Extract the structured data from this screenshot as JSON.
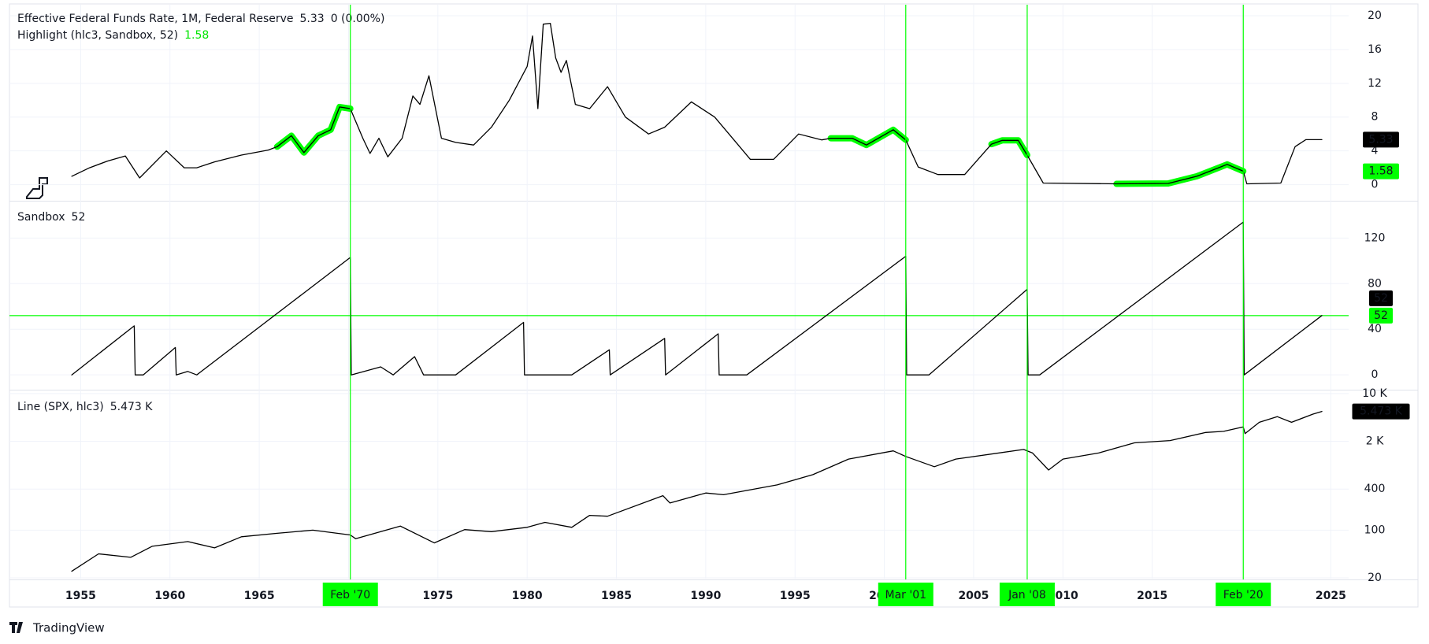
{
  "time_axis": {
    "xlim": [
      1951.1,
      2026
    ],
    "xticks": [
      1955,
      1960,
      1965,
      1970,
      1975,
      1980,
      1985,
      1990,
      1995,
      2000,
      2005,
      2010,
      2015,
      2020,
      2025
    ],
    "markers": [
      {
        "value": 1970.1,
        "label": "Feb '70"
      },
      {
        "value": 2001.2,
        "label": "Mar '01"
      },
      {
        "value": 2008.0,
        "label": "Jan '08"
      },
      {
        "value": 2020.1,
        "label": "Feb '20"
      }
    ],
    "marker_color": "#00ff00"
  },
  "brand": "TradingView",
  "chart_data": [
    {
      "type": "line",
      "legend_change": "0 (0.00%)",
      "ylim": [
        -1.9,
        21.3
      ],
      "yticks": [
        0,
        4,
        8,
        12,
        16,
        20
      ],
      "grid": true,
      "x": [
        1954.5,
        1955.5,
        1956.5,
        1957.5,
        1958.3,
        1959.8,
        1960.8,
        1961.5,
        1962.5,
        1964,
        1965.5,
        1966,
        1966.8,
        1967.5,
        1968.3,
        1969,
        1969.5,
        1970.1,
        1970.8,
        1971.2,
        1971.7,
        1972.2,
        1973,
        1973.6,
        1974,
        1974.5,
        1975.2,
        1976,
        1977,
        1978,
        1979,
        1980,
        1980.3,
        1980.6,
        1980.9,
        1981.3,
        1981.6,
        1981.9,
        1982.2,
        1982.7,
        1983.5,
        1984.5,
        1985.5,
        1986.8,
        1987.7,
        1989.2,
        1990.5,
        1991.5,
        1992.5,
        1993.8,
        1995.2,
        1996.5,
        1997,
        1998.2,
        1999,
        2000.5,
        2001.2,
        2001.9,
        2003,
        2004.5,
        2006,
        2006.6,
        2007.5,
        2008,
        2008.9,
        2013,
        2015.9,
        2017.5,
        2019.2,
        2020.1,
        2020.3,
        2022.2,
        2023,
        2023.6,
        2024.5
      ],
      "series": [
        {
          "name": "Effective Federal Funds Rate, 1M, Federal Reserve",
          "legend_value": "5.33",
          "color": "#000000",
          "line_width": 1.3,
          "values": [
            1.0,
            2.0,
            2.8,
            3.4,
            0.8,
            4.0,
            2.0,
            2.0,
            2.7,
            3.5,
            4.1,
            4.5,
            5.8,
            3.8,
            5.8,
            6.5,
            9.2,
            9.0,
            5.5,
            3.7,
            5.5,
            3.3,
            5.5,
            10.5,
            9.5,
            12.9,
            5.5,
            5.0,
            4.7,
            6.8,
            10.0,
            14.0,
            17.6,
            9.0,
            19.0,
            19.1,
            15.0,
            13.3,
            14.7,
            9.5,
            9.0,
            11.6,
            8.0,
            6.0,
            6.8,
            9.8,
            8.0,
            5.5,
            3.0,
            3.0,
            6.0,
            5.3,
            5.5,
            5.5,
            4.7,
            6.5,
            5.3,
            2.1,
            1.2,
            1.2,
            4.8,
            5.25,
            5.25,
            3.5,
            0.2,
            0.1,
            0.15,
            1.0,
            2.4,
            1.6,
            0.1,
            0.2,
            4.5,
            5.33,
            5.33
          ]
        },
        {
          "name": "Highlight (hlc3, Sandbox, 52)",
          "legend_value": "1.58",
          "color": "#00ff00",
          "line_width": 8,
          "values": [
            null,
            null,
            null,
            null,
            null,
            null,
            null,
            null,
            null,
            null,
            null,
            4.5,
            5.8,
            3.8,
            5.8,
            6.5,
            9.2,
            9.0,
            null,
            null,
            null,
            null,
            null,
            null,
            null,
            null,
            null,
            null,
            null,
            null,
            null,
            null,
            null,
            null,
            null,
            null,
            null,
            null,
            null,
            null,
            null,
            null,
            null,
            null,
            null,
            null,
            null,
            null,
            null,
            null,
            null,
            null,
            5.5,
            5.5,
            4.7,
            6.5,
            5.3,
            null,
            null,
            null,
            4.8,
            5.25,
            5.25,
            3.5,
            null,
            0.1,
            0.15,
            1.0,
            2.4,
            1.6,
            null,
            null,
            null,
            null,
            null
          ]
        }
      ],
      "price_labels": [
        {
          "value": 5.33,
          "label": "5.33",
          "color": "#000000"
        },
        {
          "value": 1.58,
          "label": "1.58",
          "color": "#00ff00"
        }
      ]
    },
    {
      "type": "line",
      "ylim": [
        -13,
        152
      ],
      "yticks": [
        0,
        40,
        80,
        120
      ],
      "grid": true,
      "x": [
        1954.5,
        1958.0,
        1958.05,
        1958.5,
        1960.3,
        1960.35,
        1961.0,
        1961.5,
        1970.1,
        1970.15,
        1971.8,
        1972.5,
        1973.7,
        1974.2,
        1976,
        1979.8,
        1979.85,
        1982.5,
        1984.6,
        1984.65,
        1987.7,
        1987.75,
        1990.7,
        1990.75,
        1992.3,
        2001.2,
        2001.25,
        2002.5,
        2008.0,
        2008.05,
        2008.7,
        2020.1,
        2020.15,
        2024.5
      ],
      "series": [
        {
          "name": "Sandbox",
          "legend_value": "52",
          "color": "#000000",
          "line_width": 1.3,
          "values": [
            0,
            43,
            0,
            0,
            24,
            0,
            3,
            0,
            103,
            0,
            7,
            0,
            16,
            0,
            0,
            46,
            0,
            0,
            22,
            0,
            32,
            0,
            36,
            0,
            0,
            104,
            0,
            0,
            75,
            0,
            0,
            134,
            0,
            52
          ]
        }
      ],
      "hline": {
        "value": 52,
        "color": "#00ff00"
      },
      "price_labels": [
        {
          "value": 52,
          "label": "52",
          "color": "#000000"
        },
        {
          "value": 52,
          "label": "52",
          "color": "#00ff00"
        }
      ]
    },
    {
      "type": "line",
      "log_scale": true,
      "ylim": [
        19.5,
        11100
      ],
      "yticks": [
        20,
        100,
        400,
        {
          "value": 2000,
          "label": "2 K"
        },
        {
          "value": 10000,
          "label": "10 K"
        }
      ],
      "grid": true,
      "x": [
        1954.5,
        1956,
        1957.8,
        1959,
        1961,
        1962.5,
        1964,
        1966,
        1968,
        1970.1,
        1970.4,
        1972.9,
        1974.8,
        1976.5,
        1978,
        1980,
        1981,
        1982.5,
        1983.5,
        1984.5,
        1987.6,
        1988,
        1990,
        1991,
        1994,
        1996,
        1998,
        2000.5,
        2001.2,
        2002.8,
        2004,
        2007.8,
        2008.3,
        2009.2,
        2010,
        2012,
        2014,
        2016,
        2018,
        2019,
        2020.1,
        2020.2,
        2021,
        2022,
        2022.8,
        2024,
        2024.5
      ],
      "series": [
        {
          "name": "Line (SPX, hlc3)",
          "legend_value": "5.473 K",
          "color": "#000000",
          "line_width": 1.3,
          "values": [
            25,
            45,
            40,
            58,
            68,
            55,
            80,
            90,
            100,
            85,
            75,
            115,
            65,
            102,
            95,
            110,
            130,
            110,
            165,
            160,
            320,
            250,
            350,
            330,
            460,
            650,
            1100,
            1450,
            1200,
            850,
            1100,
            1520,
            1350,
            760,
            1100,
            1350,
            1900,
            2050,
            2700,
            2800,
            3250,
            2600,
            3800,
            4600,
            3800,
            5000,
            5473
          ]
        }
      ],
      "price_labels": [
        {
          "value": 5473,
          "label": "5.473 K",
          "color": "#000000"
        }
      ]
    }
  ]
}
